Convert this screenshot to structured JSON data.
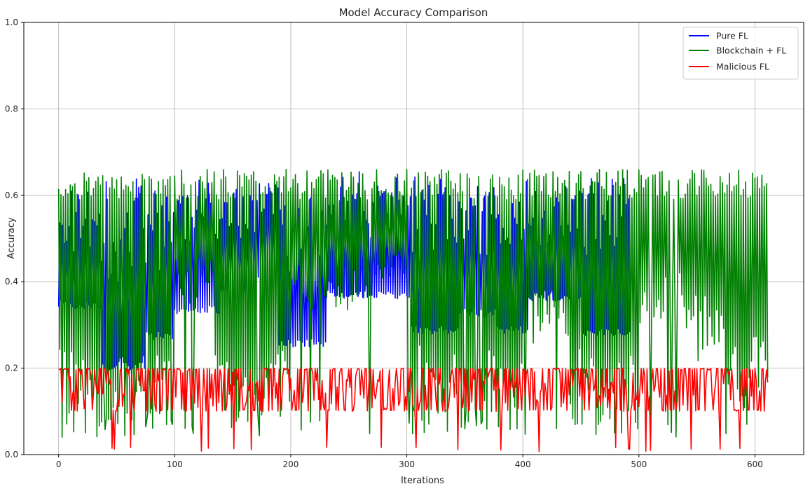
{
  "chart_data": {
    "type": "line",
    "title": "Model Accuracy Comparison",
    "xlabel": "Iterations",
    "ylabel": "Accuracy",
    "xlim": [
      -30,
      642
    ],
    "ylim": [
      0,
      1
    ],
    "x_ticks": [
      0,
      100,
      200,
      300,
      400,
      500,
      600
    ],
    "y_ticks": [
      0.0,
      0.2,
      0.4,
      0.6,
      0.8,
      1.0
    ],
    "x_tick_labels": [
      "0",
      "100",
      "200",
      "300",
      "400",
      "500",
      "600"
    ],
    "y_tick_labels": [
      "0.0",
      "0.2",
      "0.4",
      "0.6",
      "0.8",
      "1.0"
    ],
    "grid": true,
    "legend_position": "top-right",
    "iterations": 612,
    "series": [
      {
        "name": "Pure FL",
        "color": "#0000ff",
        "segments": [
          {
            "x": [
              0,
              30
            ],
            "low": 0.337,
            "high": 0.625
          },
          {
            "x": [
              30,
              37
            ],
            "low": 0.337,
            "high": 0.58
          },
          {
            "x": [
              37,
              75
            ],
            "low": 0.195,
            "high": 0.647
          },
          {
            "x": [
              75,
              88
            ],
            "low": 0.265,
            "high": 0.62
          },
          {
            "x": [
              88,
              100
            ],
            "low": 0.265,
            "high": 0.6
          },
          {
            "x": [
              100,
              140
            ],
            "low": 0.325,
            "high": 0.645
          },
          {
            "x": [
              140,
              170
            ],
            "low": 0.375,
            "high": 0.622
          },
          {
            "x": [
              170,
              190
            ],
            "low": 0.41,
            "high": 0.64
          },
          {
            "x": [
              190,
              232
            ],
            "low": 0.248,
            "high": 0.62
          },
          {
            "x": [
              232,
              303
            ],
            "low": 0.36,
            "high": 0.655
          },
          {
            "x": [
              303,
              345
            ],
            "low": 0.28,
            "high": 0.645
          },
          {
            "x": [
              345,
              378
            ],
            "low": 0.32,
            "high": 0.63
          },
          {
            "x": [
              378,
              405
            ],
            "low": 0.28,
            "high": 0.635
          },
          {
            "x": [
              405,
              452
            ],
            "low": 0.355,
            "high": 0.625
          },
          {
            "x": [
              452,
              493
            ],
            "low": 0.273,
            "high": 0.645
          }
        ]
      },
      {
        "name": "Blockchain + FL",
        "color": "#008000",
        "segments": [
          {
            "x": [
              0,
              40
            ],
            "low": 0.04,
            "high": 0.66
          },
          {
            "x": [
              40,
              100
            ],
            "low": 0.04,
            "high": 0.66
          },
          {
            "x": [
              100,
              135
            ],
            "low": 0.35,
            "high": 0.66
          },
          {
            "x": [
              135,
              200
            ],
            "low": 0.04,
            "high": 0.66
          },
          {
            "x": [
              200,
              240
            ],
            "low": 0.33,
            "high": 0.66
          },
          {
            "x": [
              240,
              270
            ],
            "low": 0.32,
            "high": 0.655
          },
          {
            "x": [
              270,
              300
            ],
            "low": 0.39,
            "high": 0.66
          },
          {
            "x": [
              300,
              340
            ],
            "low": 0.04,
            "high": 0.66
          },
          {
            "x": [
              340,
              400
            ],
            "low": 0.04,
            "high": 0.66
          },
          {
            "x": [
              400,
              440
            ],
            "low": 0.255,
            "high": 0.66
          },
          {
            "x": [
              440,
              500
            ],
            "low": 0.04,
            "high": 0.66
          },
          {
            "x": [
              500,
              540
            ],
            "low": 0.3,
            "high": 0.66
          },
          {
            "x": [
              540,
              575
            ],
            "low": 0.215,
            "high": 0.66
          },
          {
            "x": [
              575,
              612
            ],
            "low": 0.08,
            "high": 0.66
          }
        ]
      },
      {
        "name": "Malicious FL",
        "color": "#ff0000",
        "segments": [
          {
            "x": [
              0,
              612
            ],
            "low": 0.007,
            "high": 0.2
          }
        ]
      }
    ]
  }
}
